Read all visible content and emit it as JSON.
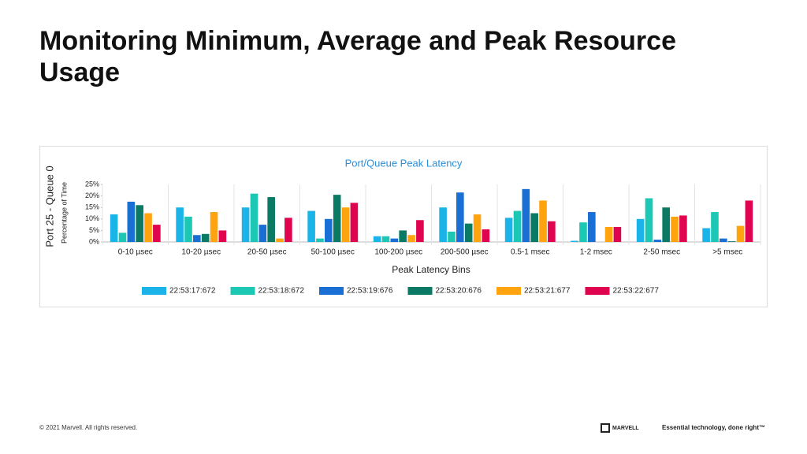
{
  "slide": {
    "title": "Monitoring Minimum, Average and Peak Resource Usage",
    "footer": "© 2021 Marvell. All rights reserved.",
    "logo": "MARVELL",
    "tagline": "Essential technology, done right™"
  },
  "chart_data": {
    "type": "bar",
    "title": "Port/Queue Peak Latency",
    "y_title": "Port 25 - Queue 0",
    "y_label": "Percentage of Time",
    "x_label": "Peak Latency Bins",
    "categories": [
      "0-10 µsec",
      "10-20 µsec",
      "20-50 µsec",
      "50-100 µsec",
      "100-200 µsec",
      "200-500 µsec",
      "0.5-1 msec",
      "1-2 msec",
      "2-50 msec",
      ">5 msec"
    ],
    "series": [
      {
        "name": "22:53:17:672",
        "color": "#1ab4e8",
        "values": [
          12,
          15,
          15,
          13.5,
          2.5,
          15,
          10.5,
          0.5,
          10,
          6
        ]
      },
      {
        "name": "22:53:18:672",
        "color": "#1cc8b4",
        "values": [
          4,
          11,
          21,
          1.5,
          2.5,
          4.5,
          13.5,
          8.5,
          19,
          13
        ]
      },
      {
        "name": "22:53:19:676",
        "color": "#1a6fd4",
        "values": [
          17.5,
          3,
          7.5,
          10,
          1.5,
          21.5,
          23,
          13,
          1,
          1.5
        ]
      },
      {
        "name": "22:53:20:676",
        "color": "#0b7a64",
        "values": [
          16,
          3.5,
          19.5,
          20.5,
          5,
          8,
          12.5,
          0,
          15,
          0.3
        ]
      },
      {
        "name": "22:53:21:677",
        "color": "#ffa30f",
        "values": [
          12.5,
          13,
          1.5,
          15,
          3,
          12,
          18,
          6.5,
          11,
          7
        ]
      },
      {
        "name": "22:53:22:677",
        "color": "#e0034f",
        "values": [
          7.5,
          5,
          10.5,
          17,
          9.5,
          5.5,
          9,
          6.5,
          11.5,
          18
        ]
      }
    ],
    "ylim": [
      0,
      25
    ],
    "yticks": [
      {
        "value": 0,
        "label": "0%"
      },
      {
        "value": 5,
        "label": "5%"
      },
      {
        "value": 10,
        "label": "10%"
      },
      {
        "value": 15,
        "label": "15%"
      },
      {
        "value": 20,
        "label": "20%"
      },
      {
        "value": 25,
        "label": "25%"
      }
    ],
    "grid": false,
    "legend": "bottom"
  }
}
